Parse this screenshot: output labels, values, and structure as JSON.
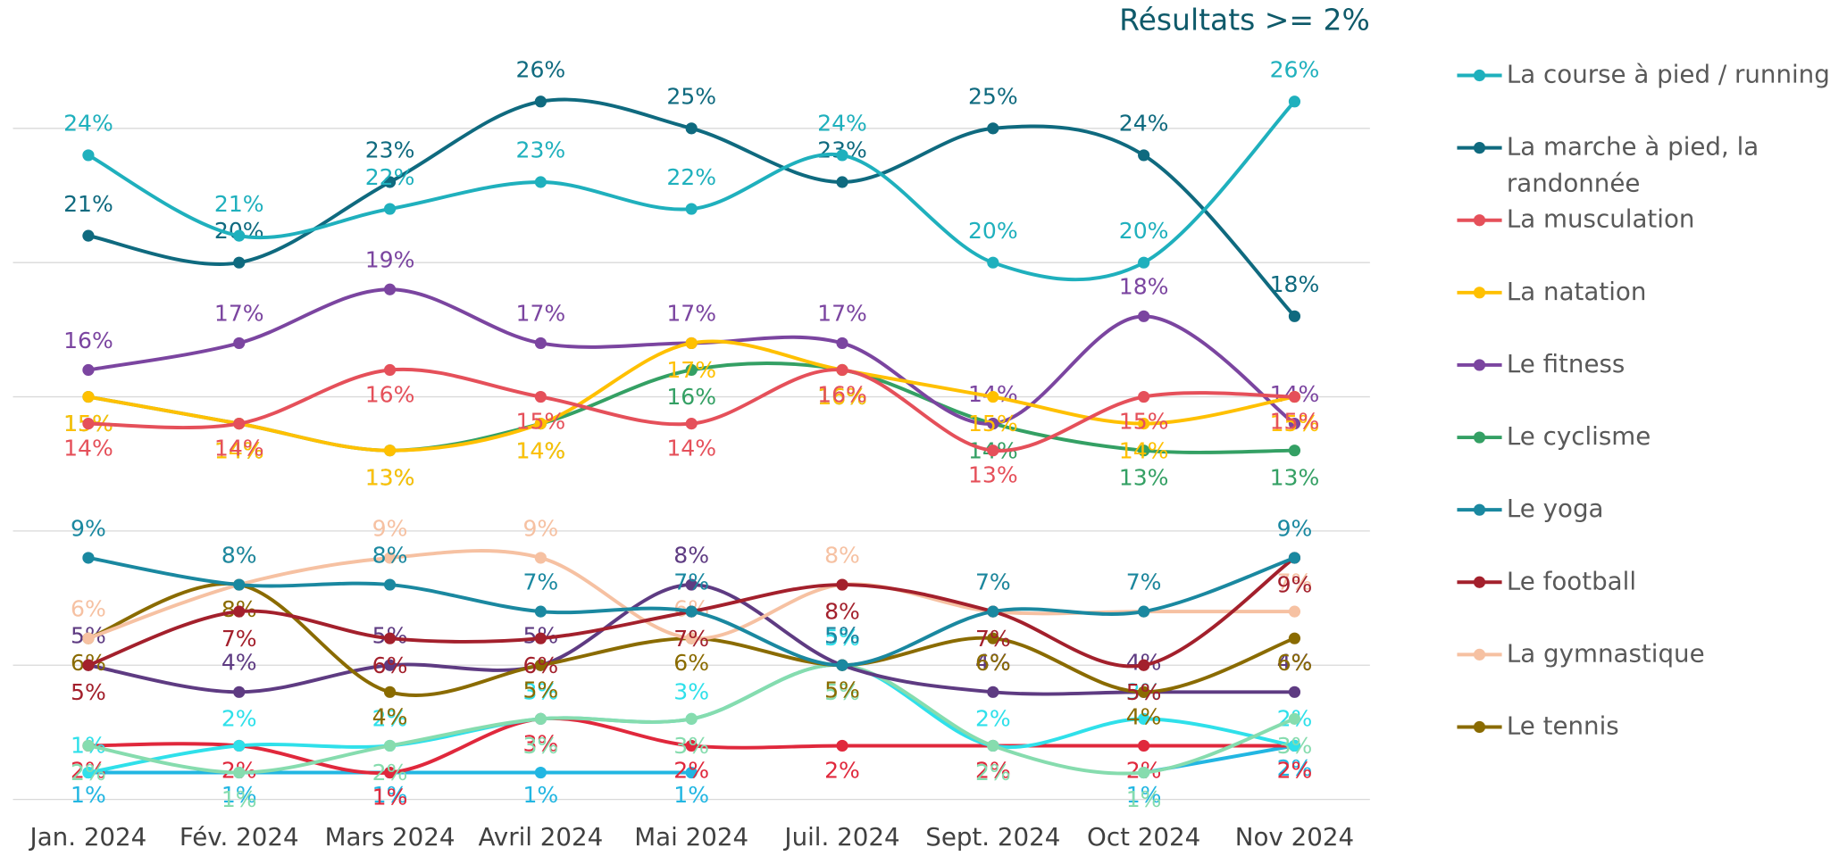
{
  "chart_data": {
    "type": "line",
    "title": "Résultats >= 2%",
    "categories": [
      "Jan. 2024",
      "Fév. 2024",
      "Mars 2024",
      "Avril 2024",
      "Mai 2024",
      "Juil. 2024",
      "Sept. 2024",
      "Oct 2024",
      "Nov 2024"
    ],
    "ylim": [
      0,
      28
    ],
    "yticks": [
      0,
      5,
      10,
      15,
      20,
      25
    ],
    "grid": true,
    "legend": "right",
    "series": [
      {
        "name": "La course à pied / running",
        "color": "#1fb0bd",
        "values": [
          24,
          21,
          22,
          23,
          22,
          24,
          20,
          20,
          26
        ],
        "value_labels": [
          "24%",
          "21%",
          "22%",
          "23%",
          "22%",
          "24%",
          "20%",
          "20%",
          "26%"
        ]
      },
      {
        "name": "La marche à pied, la randonnée",
        "color": "#0f6a7f",
        "values": [
          21,
          20,
          23,
          26,
          25,
          23,
          25,
          24,
          18
        ],
        "value_labels": [
          "21%",
          "20%",
          "23%",
          "26%",
          "25%",
          "23%",
          "25%",
          "24%",
          "18%"
        ]
      },
      {
        "name": "La musculation",
        "color": "#e5505a",
        "values": [
          14,
          14,
          16,
          15,
          14,
          16,
          13,
          15,
          15
        ],
        "value_labels": [
          "14%",
          "14%",
          "16%",
          "15%",
          "14%",
          "16%",
          "13%",
          "15%",
          "15%"
        ]
      },
      {
        "name": "La natation",
        "color": "#ffc000",
        "values": [
          15,
          14,
          13,
          14,
          17,
          16,
          15,
          14,
          15
        ],
        "value_labels": [
          "15%",
          "14%",
          "13%",
          "14%",
          "17%",
          "16%",
          "15%",
          "14%",
          "15%"
        ]
      },
      {
        "name": "Le fitness",
        "color": "#7b45a0",
        "values": [
          16,
          17,
          19,
          17,
          17,
          17,
          14,
          18,
          14
        ],
        "value_labels": [
          "16%",
          "17%",
          "19%",
          "17%",
          "17%",
          "17%",
          "14%",
          "18%",
          "14%"
        ]
      },
      {
        "name": "Le cyclisme",
        "color": "#34a064",
        "values": [
          15,
          14,
          13,
          14,
          16,
          16,
          14,
          13,
          13
        ],
        "value_labels": [
          "15%",
          "14%",
          "13%",
          "14%",
          "16%",
          "16%",
          "14%",
          "13%",
          "13%"
        ]
      },
      {
        "name": "Le yoga",
        "color": "#1a88a0",
        "values": [
          9,
          8,
          8,
          7,
          7,
          5,
          7,
          7,
          9
        ],
        "value_labels": [
          "9%",
          "8%",
          "8%",
          "7%",
          "7%",
          "5%",
          "7%",
          "7%",
          "9%"
        ]
      },
      {
        "name": "Le football",
        "color": "#a3202c",
        "values": [
          5,
          7,
          6,
          6,
          7,
          8,
          7,
          5,
          9
        ],
        "value_labels": [
          "5%",
          "7%",
          "6%",
          "6%",
          "7%",
          "8%",
          "7%",
          "5%",
          "9%"
        ]
      },
      {
        "name": "La gymnastique",
        "color": "#f6c1a2",
        "values": [
          6,
          8,
          9,
          9,
          6,
          8,
          7,
          7,
          7
        ],
        "value_labels": [
          "6%",
          "8%",
          "9%",
          "9%",
          "6%",
          "8%",
          "7%",
          "7%",
          "7%"
        ]
      },
      {
        "name": "Le tennis",
        "color": "#8a6b00",
        "values": [
          6,
          8,
          4,
          5,
          6,
          5,
          6,
          4,
          6
        ],
        "value_labels": [
          "6%",
          "8%",
          "4%",
          "5%",
          "6%",
          "5%",
          "6%",
          "4%",
          "6%"
        ]
      },
      {
        "color": "#5e3b82",
        "values": [
          5,
          4,
          5,
          5,
          8,
          5,
          4,
          4,
          4
        ],
        "value_labels": [
          "5%",
          "4%",
          "5%",
          "5%",
          "8%",
          "5%",
          "4%",
          "4%",
          "4%"
        ]
      },
      {
        "color": "#86dcae",
        "values": [
          2,
          1,
          2,
          3,
          3,
          5,
          2,
          1,
          3
        ],
        "value_labels": [
          "2%",
          "1%",
          "2%",
          "3%",
          "3%",
          "5%",
          "2%",
          "1%",
          "3%"
        ]
      },
      {
        "color": "#2fe0ea",
        "values": [
          1,
          2,
          2,
          3,
          3,
          5,
          2,
          3,
          2
        ],
        "value_labels": [
          "1%",
          "2%",
          "2%",
          "3%",
          "3%",
          "5%",
          "2%",
          "3%",
          "2%"
        ]
      },
      {
        "color": "#e0283c",
        "values": [
          2,
          2,
          1,
          3,
          2,
          2,
          2,
          2,
          2
        ],
        "value_labels": [
          "2%",
          "2%",
          "1%",
          "3%",
          "2%",
          "2%",
          "2%",
          "2%",
          "2%"
        ]
      },
      {
        "color": "#22b6e2",
        "values": [
          1,
          1,
          1,
          1,
          1,
          null,
          null,
          1,
          2
        ],
        "value_labels": [
          "1%",
          "1%",
          "1%",
          "1%",
          "1%",
          null,
          null,
          "1%",
          "2%"
        ]
      }
    ]
  }
}
